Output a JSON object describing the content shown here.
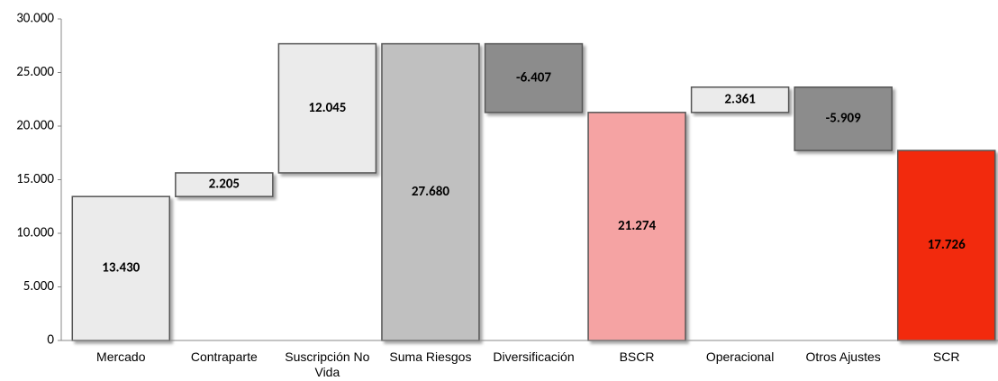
{
  "chart_data": {
    "type": "waterfall",
    "categories": [
      "Mercado",
      "Contraparte",
      "Suscripción No Vida",
      "Suma Riesgos",
      "Diversificación",
      "BSCR",
      "Operacional",
      "Otros Ajustes",
      "SCR"
    ],
    "values": [
      13430,
      2205,
      12045,
      27680,
      -6407,
      21274,
      2361,
      -5909,
      17726
    ],
    "value_labels": [
      "13.430",
      "2.205",
      "12.045",
      "27.680",
      "-6.407",
      "21.274",
      "2.361",
      "-5.909",
      "17.726"
    ],
    "measure": [
      "relative",
      "relative",
      "relative",
      "total",
      "relative",
      "total",
      "relative",
      "relative",
      "total"
    ],
    "colors": [
      "#ebebeb",
      "#ebebeb",
      "#ebebeb",
      "#c0c0c0",
      "#8c8c8c",
      "#f5a3a3",
      "#ebebeb",
      "#8c8c8c",
      "#f22a0c"
    ],
    "ylim": [
      0,
      30000
    ],
    "yticks": [
      0,
      {
        "value": 5000,
        "label": "5.000"
      },
      {
        "value": 10000,
        "label": "10.000"
      },
      {
        "value": 15000,
        "label": "15.000"
      },
      {
        "value": 20000,
        "label": "20.000"
      },
      {
        "value": 25000,
        "label": "25.000"
      },
      {
        "value": 30000,
        "label": "30.000"
      }
    ]
  }
}
